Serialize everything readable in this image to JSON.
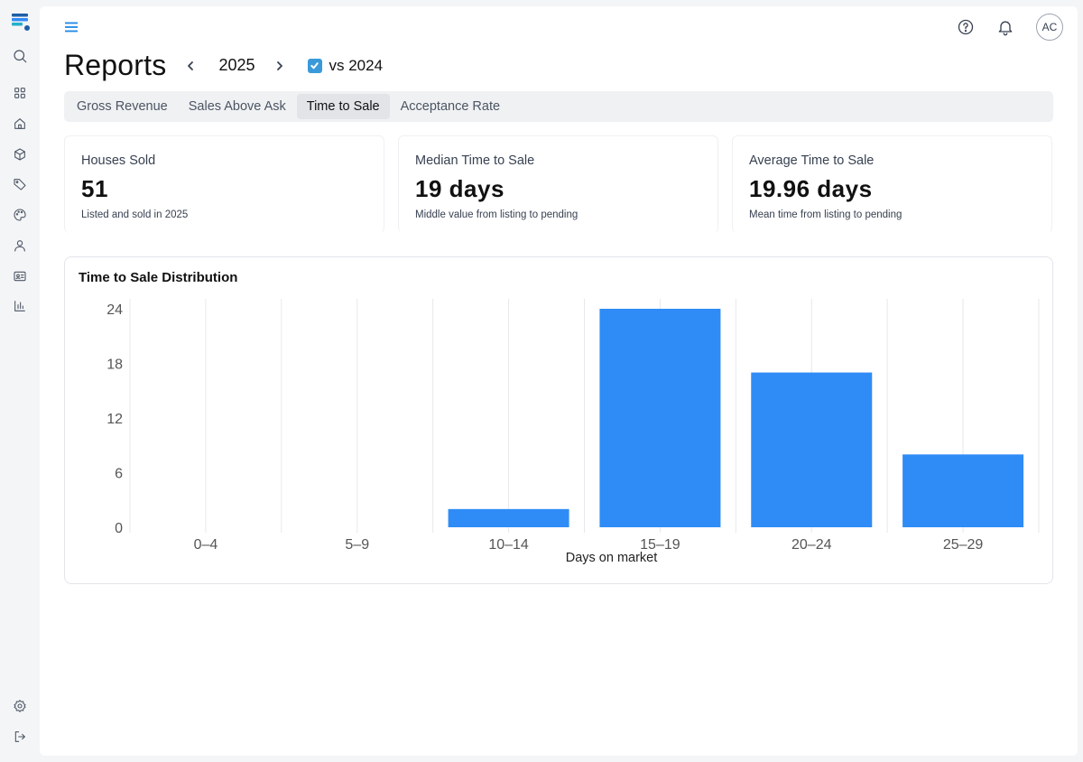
{
  "sidebar": {
    "logo_icon": "brand-logo-icon",
    "items": [
      {
        "name": "search",
        "icon": "search-icon"
      },
      {
        "name": "dashboard",
        "icon": "grid-icon"
      },
      {
        "name": "home",
        "icon": "home-icon"
      },
      {
        "name": "packages",
        "icon": "box-icon"
      },
      {
        "name": "tags",
        "icon": "tag-icon"
      },
      {
        "name": "palette",
        "icon": "palette-icon"
      },
      {
        "name": "contacts",
        "icon": "user-icon"
      },
      {
        "name": "id-card",
        "icon": "id-card-icon"
      },
      {
        "name": "reports",
        "icon": "bar-chart-icon"
      }
    ],
    "bottom_items": [
      {
        "name": "settings",
        "icon": "gear-icon"
      },
      {
        "name": "logout",
        "icon": "logout-icon"
      }
    ]
  },
  "header": {
    "avatar_initials": "AC",
    "help_icon": "help-icon",
    "bell_icon": "bell-icon"
  },
  "page": {
    "title": "Reports",
    "year": "2025",
    "compare_label": "vs 2024",
    "compare_checked": true
  },
  "tabs": [
    {
      "label": "Gross Revenue",
      "active": false
    },
    {
      "label": "Sales Above Ask",
      "active": false
    },
    {
      "label": "Time to Sale",
      "active": true
    },
    {
      "label": "Acceptance Rate",
      "active": false
    }
  ],
  "cards": [
    {
      "label": "Houses Sold",
      "value": "51",
      "sub": "Listed and sold in 2025"
    },
    {
      "label": "Median Time to Sale",
      "value": "19 days",
      "sub": "Middle value from listing to pending"
    },
    {
      "label": "Average Time to Sale",
      "value": "19.96 days",
      "sub": "Mean time from listing to pending"
    }
  ],
  "colors": {
    "accent": "#1e88e5",
    "bar": "#2f8cf6",
    "checkbox": "#3a9ad9"
  },
  "chart_data": {
    "type": "bar",
    "title": "Time to Sale Distribution",
    "xlabel": "Days on market",
    "ylabel": "",
    "categories": [
      "0–4",
      "5–9",
      "10–14",
      "15–19",
      "20–24",
      "25–29"
    ],
    "values": [
      0,
      0,
      2,
      24,
      17,
      8
    ],
    "yticks": [
      0,
      6,
      12,
      18,
      24
    ],
    "ylim": [
      0,
      24
    ],
    "grid": "vertical"
  }
}
